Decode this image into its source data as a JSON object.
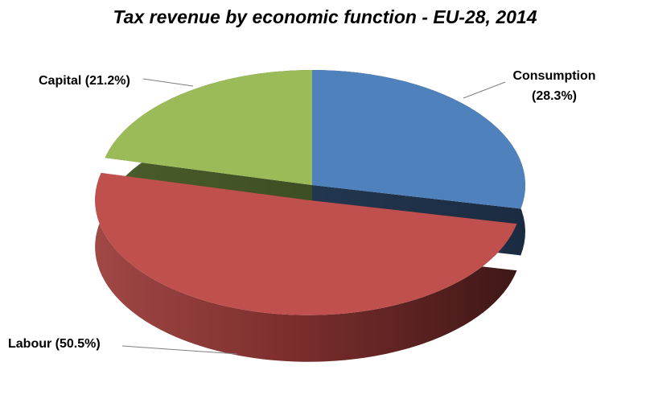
{
  "chart_data": {
    "type": "pie",
    "title": "Tax revenue by economic function - EU-28, 2014",
    "slices": [
      {
        "label": "Consumption",
        "value": 28.3,
        "label_text": "Consumption",
        "label_value_text": "(28.3%)",
        "color": "#4f81bd"
      },
      {
        "label": "Labour",
        "value": 50.5,
        "label_text": "Labour (50.5%)",
        "color": "#c0504d",
        "exploded": true
      },
      {
        "label": "Capital",
        "value": 21.2,
        "label_text": "Capital (21.2%)",
        "color": "#9bbb59"
      }
    ],
    "unit": "%",
    "three_d": true,
    "legend": "none"
  }
}
